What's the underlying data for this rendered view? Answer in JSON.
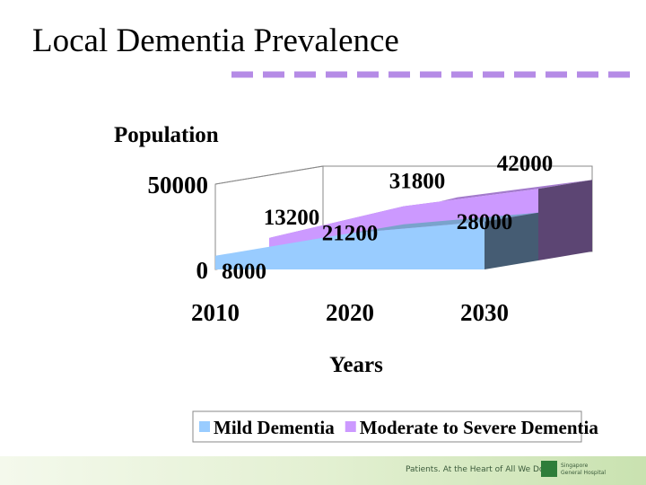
{
  "chart_data": {
    "type": "area3d",
    "title": "Local Dementia Prevalence",
    "y_label": "Population",
    "x_label": "Years",
    "categories": [
      "2010",
      "2020",
      "2030"
    ],
    "series": [
      {
        "name": "Mild Dementia",
        "color": "#99ccff",
        "values": [
          8000,
          21200,
          28000
        ]
      },
      {
        "name": "Moderate to Severe Dementia",
        "color": "#cc99ff",
        "values": [
          13200,
          31800,
          42000
        ]
      }
    ],
    "ylim": [
      0,
      50000
    ],
    "yticks": [
      0,
      50000
    ],
    "grid": true,
    "legend": "bottom"
  },
  "footer": {
    "slogan": "Patients. At the Heart of All We Do.",
    "logo": [
      "Singapore",
      "General Hospital"
    ]
  }
}
